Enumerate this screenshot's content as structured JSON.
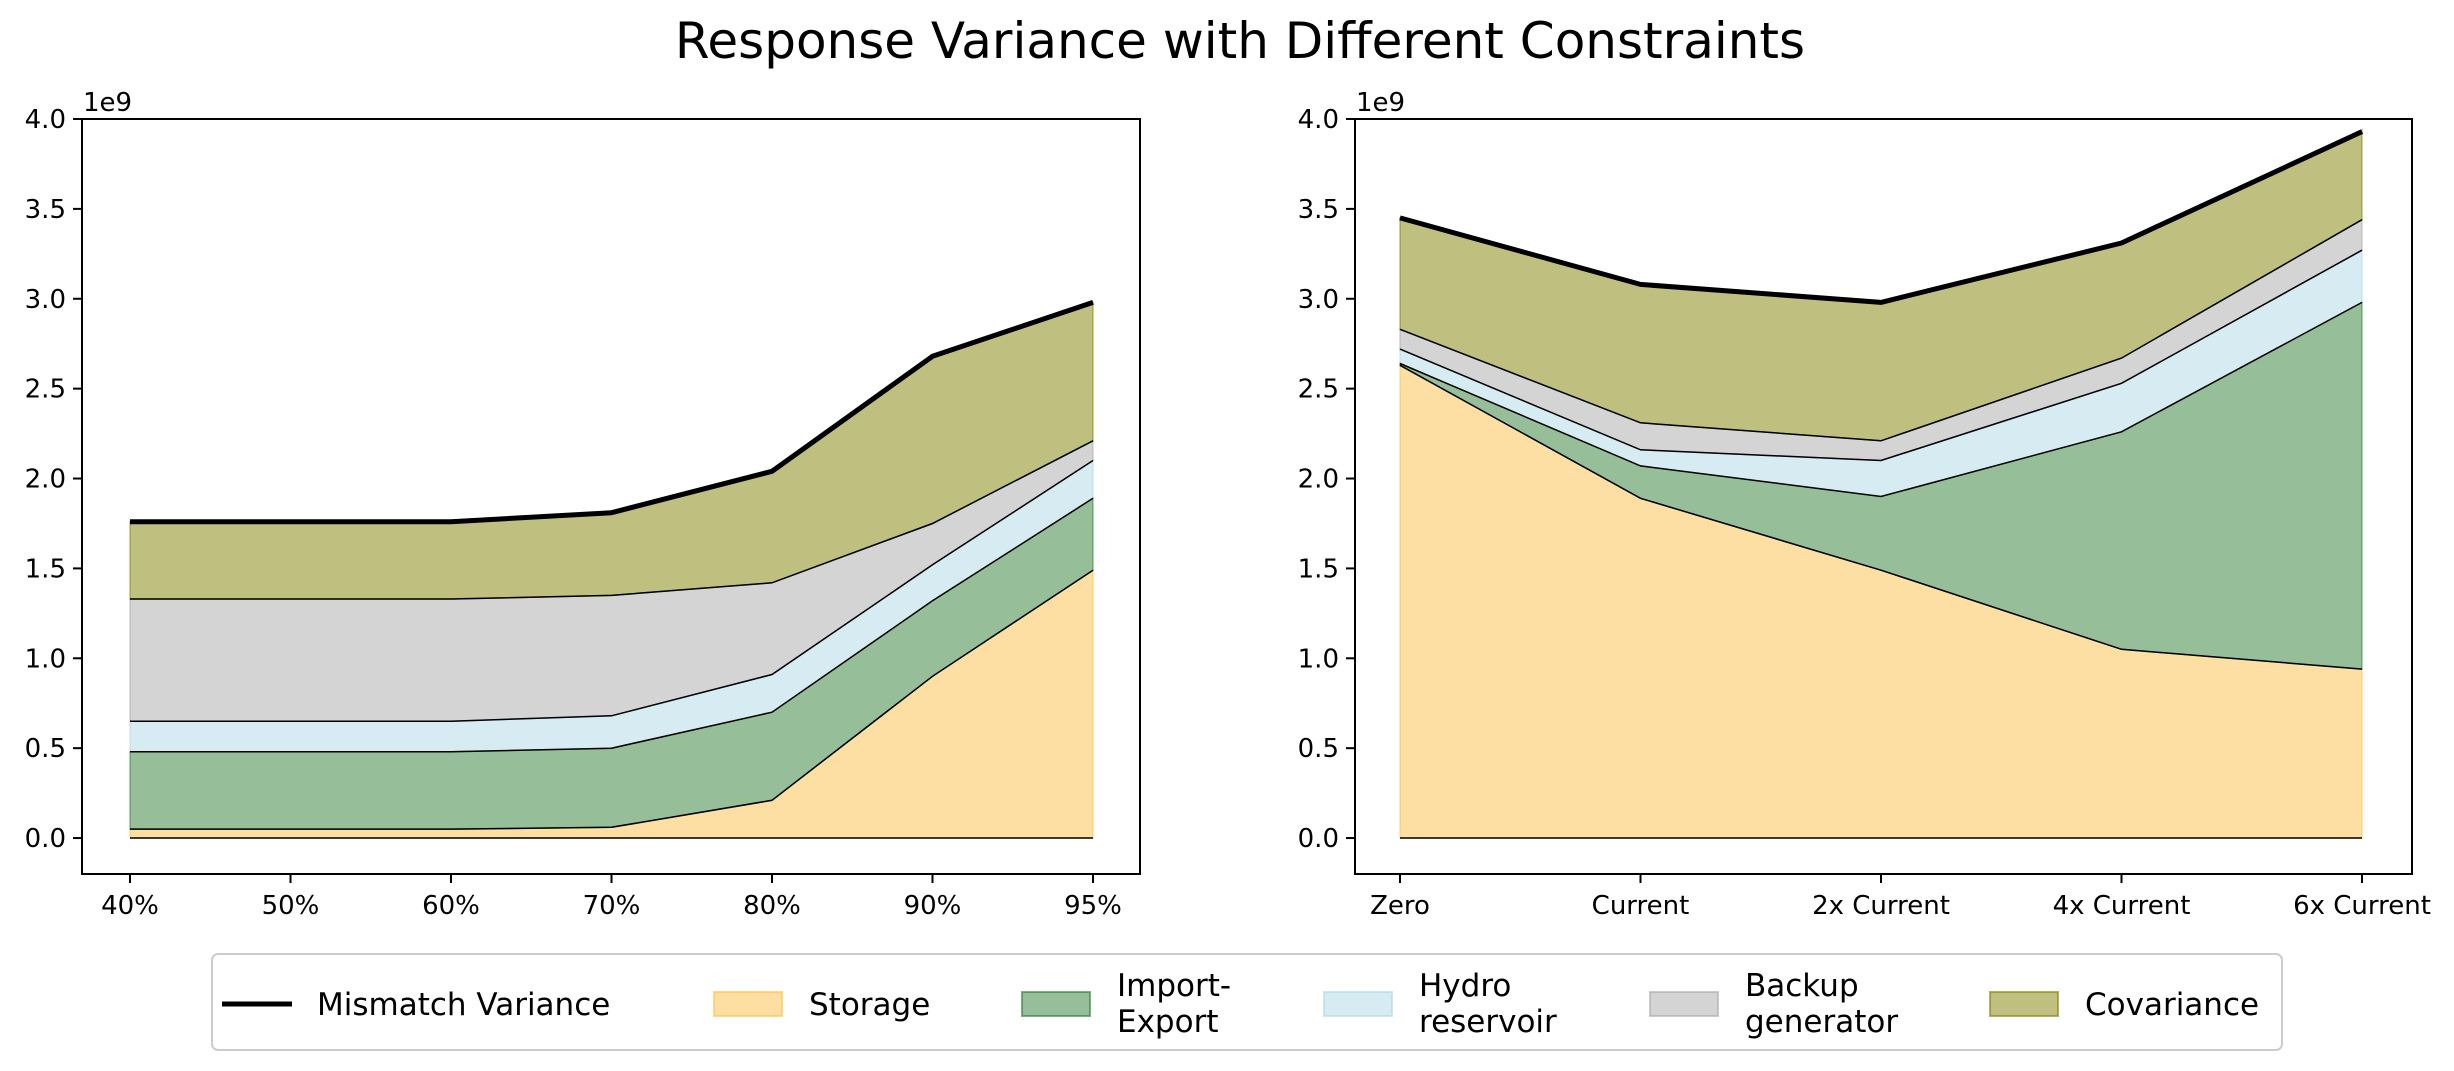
{
  "title": "Response Variance with Different Constraints",
  "colors": {
    "storage": "#fcc049",
    "import_export": "#2e7d32",
    "hydro": "#add8e6",
    "backup": "#a9a9a9",
    "covariance": "#808000",
    "mismatch": "#000000"
  },
  "legend": {
    "entries": [
      {
        "key": "mismatch",
        "label_lines": [
          "Mismatch Variance"
        ]
      },
      {
        "key": "storage",
        "label_lines": [
          "Storage"
        ]
      },
      {
        "key": "import_export",
        "label_lines": [
          "Import-",
          "Export"
        ]
      },
      {
        "key": "hydro",
        "label_lines": [
          "Hydro",
          "reservoir"
        ]
      },
      {
        "key": "backup",
        "label_lines": [
          "Backup",
          "generator"
        ]
      },
      {
        "key": "covariance",
        "label_lines": [
          "Covariance"
        ]
      }
    ]
  },
  "chart_data": [
    {
      "type": "area",
      "stacked": true,
      "categories": [
        "40%",
        "50%",
        "60%",
        "70%",
        "80%",
        "90%",
        "95%"
      ],
      "ylim": [
        -0.2,
        4.0
      ],
      "yticks": [
        0.0,
        0.5,
        1.0,
        1.5,
        2.0,
        2.5,
        3.0,
        3.5,
        4.0
      ],
      "ytick_labels": [
        "0.0",
        "0.5",
        "1.0",
        "1.5",
        "2.0",
        "2.5",
        "3.0",
        "3.5",
        "4.0"
      ],
      "y_offset_label": "1e9",
      "series": [
        {
          "key": "storage",
          "name": "Storage",
          "values": [
            0.05,
            0.05,
            0.05,
            0.06,
            0.21,
            0.9,
            1.49
          ]
        },
        {
          "key": "import_export",
          "name": "Import-Export",
          "values": [
            0.43,
            0.43,
            0.43,
            0.44,
            0.49,
            0.42,
            0.4
          ]
        },
        {
          "key": "hydro",
          "name": "Hydro reservoir",
          "values": [
            0.17,
            0.17,
            0.17,
            0.18,
            0.21,
            0.2,
            0.21
          ]
        },
        {
          "key": "backup",
          "name": "Backup generator",
          "values": [
            0.68,
            0.68,
            0.68,
            0.67,
            0.51,
            0.23,
            0.11
          ]
        },
        {
          "key": "covariance",
          "name": "Covariance",
          "values": [
            0.43,
            0.43,
            0.43,
            0.46,
            0.62,
            0.93,
            0.77
          ]
        }
      ],
      "line": {
        "key": "mismatch",
        "name": "Mismatch Variance",
        "values": [
          1.76,
          1.76,
          1.76,
          1.81,
          2.04,
          2.68,
          2.98
        ]
      }
    },
    {
      "type": "area",
      "stacked": true,
      "categories": [
        "Zero",
        "Current",
        "2x Current",
        "4x Current",
        "6x Current"
      ],
      "ylim": [
        -0.2,
        4.0
      ],
      "yticks": [
        0.0,
        0.5,
        1.0,
        1.5,
        2.0,
        2.5,
        3.0,
        3.5,
        4.0
      ],
      "ytick_labels": [
        "0.0",
        "0.5",
        "1.0",
        "1.5",
        "2.0",
        "2.5",
        "3.0",
        "3.5",
        "4.0"
      ],
      "y_offset_label": "1e9",
      "series": [
        {
          "key": "storage",
          "name": "Storage",
          "values": [
            2.63,
            1.89,
            1.49,
            1.05,
            0.94
          ]
        },
        {
          "key": "import_export",
          "name": "Import-Export",
          "values": [
            0.01,
            0.18,
            0.41,
            1.21,
            2.04
          ]
        },
        {
          "key": "hydro",
          "name": "Hydro reservoir",
          "values": [
            0.08,
            0.09,
            0.2,
            0.27,
            0.29
          ]
        },
        {
          "key": "backup",
          "name": "Backup generator",
          "values": [
            0.11,
            0.15,
            0.11,
            0.14,
            0.17
          ]
        },
        {
          "key": "covariance",
          "name": "Covariance",
          "values": [
            0.62,
            0.77,
            0.77,
            0.64,
            0.5
          ]
        }
      ],
      "line": {
        "key": "mismatch",
        "name": "Mismatch Variance",
        "values": [
          3.45,
          3.08,
          2.98,
          3.31,
          3.93
        ]
      }
    }
  ]
}
